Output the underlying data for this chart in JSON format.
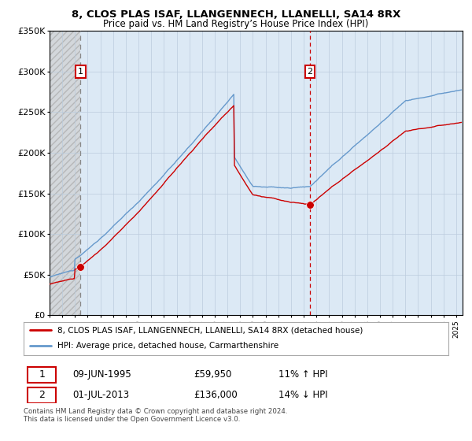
{
  "title": "8, CLOS PLAS ISAF, LLANGENNECH, LLANELLI, SA14 8RX",
  "subtitle": "Price paid vs. HM Land Registry’s House Price Index (HPI)",
  "ytick_labels": [
    "£0",
    "£50K",
    "£100K",
    "£150K",
    "£200K",
    "£250K",
    "£300K",
    "£350K"
  ],
  "yticks": [
    0,
    50000,
    100000,
    150000,
    200000,
    250000,
    300000,
    350000
  ],
  "ylim": [
    0,
    350000
  ],
  "xlim_start": 1993,
  "xlim_end": 2025.5,
  "legend_line1": "8, CLOS PLAS ISAF, LLANGENNECH, LLANELLI, SA14 8RX (detached house)",
  "legend_line2": "HPI: Average price, detached house, Carmarthenshire",
  "transaction1_date": "09-JUN-1995",
  "transaction1_price": "£59,950",
  "transaction1_hpi": "11% ↑ HPI",
  "transaction2_date": "01-JUL-2013",
  "transaction2_price": "£136,000",
  "transaction2_hpi": "14% ↓ HPI",
  "footnote": "Contains HM Land Registry data © Crown copyright and database right 2024.\nThis data is licensed under the Open Government Licence v3.0.",
  "bg_color": "#dce9f5",
  "hatch_bg": "#e8e8e8",
  "red_line_color": "#cc0000",
  "blue_line_color": "#6699cc",
  "dashed_line1_color": "#888888",
  "dashed_line2_color": "#cc0000",
  "grid_color": "#bbccdd",
  "sale1_x": 1995.44,
  "sale1_y": 59950,
  "sale2_x": 2013.5,
  "sale2_y": 136000
}
